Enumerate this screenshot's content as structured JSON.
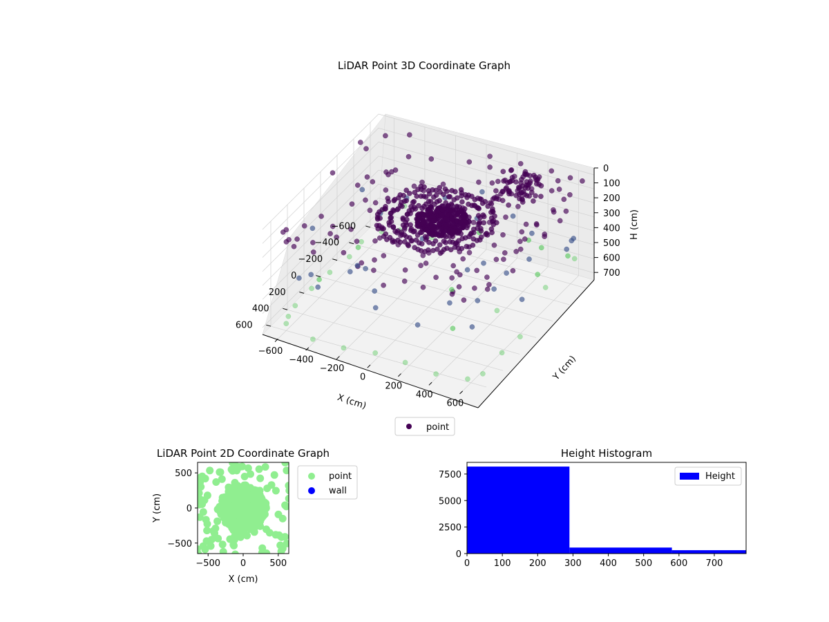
{
  "colors": {
    "point_3d_low": "#440154",
    "point_3d_mid": "#3b528b",
    "point_3d_high": "#5ec962",
    "point_2d": "#90ee90",
    "wall": "#0000ff",
    "hist_bar": "#0000ff",
    "pane_fill": "#f2f2f2",
    "grid": "#d0d0d0"
  },
  "chart_data": [
    {
      "type": "scatter",
      "projection": "3d",
      "title": "LiDAR Point 3D Coordinate Graph",
      "xlabel": "X (cm)",
      "ylabel": "Y (cm)",
      "zlabel": "H (cm)",
      "xlim": [
        -700,
        700
      ],
      "ylim": [
        -700,
        700
      ],
      "zlim": [
        750,
        0
      ],
      "xticks": [
        "−600",
        "−400",
        "−200",
        "0",
        "200",
        "400",
        "600"
      ],
      "yticks": [
        "−600",
        "−400",
        "−200",
        "0",
        "200",
        "400",
        "600"
      ],
      "zticks": [
        "0",
        "100",
        "200",
        "300",
        "400",
        "500",
        "600",
        "700"
      ],
      "legend": {
        "placement": "bottom-center",
        "entries": [
          "point"
        ]
      },
      "grid": true,
      "series": [
        {
          "name": "point",
          "structure": {
            "ring_center": [
              50,
              80
            ],
            "ring_radii_cm": [
              180,
              260,
              330
            ],
            "ring_height_cm": 50,
            "core_height_cm": 30,
            "upper_left_cluster_center": [
              -550,
              300
            ],
            "sample_points": [
              [
                -650,
                600,
                600
              ],
              [
                -600,
                620,
                420
              ],
              [
                -520,
                650,
                380
              ],
              [
                -480,
                640,
                420
              ],
              [
                -640,
                -500,
                560
              ],
              [
                -600,
                -620,
                600
              ],
              [
                -650,
                200,
                420
              ],
              [
                -600,
                -300,
                700
              ],
              [
                -550,
                -600,
                720
              ],
              [
                -400,
                -650,
                720
              ],
              [
                -200,
                -620,
                700
              ],
              [
                0,
                -640,
                700
              ],
              [
                200,
                -650,
                700
              ],
              [
                380,
                -660,
                720
              ],
              [
                500,
                -640,
                720
              ],
              [
                600,
                -600,
                700
              ],
              [
                650,
                -400,
                720
              ],
              [
                650,
                -200,
                720
              ],
              [
                640,
                0,
                700
              ],
              [
                650,
                200,
                700
              ],
              [
                650,
                400,
                720
              ],
              [
                640,
                600,
                700
              ],
              [
                550,
                650,
                700
              ],
              [
                300,
                640,
                700
              ],
              [
                100,
                650,
                700
              ],
              [
                -300,
                600,
                600
              ],
              [
                -200,
                400,
                500
              ],
              [
                300,
                300,
                450
              ],
              [
                400,
                500,
                500
              ],
              [
                500,
                200,
                520
              ],
              [
                200,
                -300,
                450
              ],
              [
                -300,
                -200,
                500
              ],
              [
                -100,
                200,
                480
              ],
              [
                450,
                -100,
                520
              ],
              [
                -400,
                -400,
                560
              ],
              [
                100,
                500,
                560
              ],
              [
                -650,
                650,
                30
              ],
              [
                -500,
                650,
                40
              ],
              [
                -300,
                650,
                30
              ],
              [
                -100,
                650,
                20
              ],
              [
                100,
                650,
                20
              ],
              [
                300,
                650,
                30
              ],
              [
                500,
                650,
                40
              ],
              [
                650,
                650,
                30
              ],
              [
                650,
                400,
                30
              ],
              [
                650,
                200,
                40
              ],
              [
                650,
                0,
                30
              ],
              [
                650,
                -200,
                40
              ],
              [
                650,
                -400,
                30
              ],
              [
                600,
                -600,
                30
              ],
              [
                -650,
                450,
                20
              ],
              [
                -650,
                250,
                30
              ],
              [
                -650,
                50,
                40
              ],
              [
                -400,
                600,
                120
              ],
              [
                0,
                600,
                150
              ],
              [
                400,
                600,
                200
              ],
              [
                620,
                300,
                150
              ],
              [
                620,
                -100,
                100
              ],
              [
                500,
                500,
                250
              ],
              [
                -250,
                620,
                200
              ]
            ]
          }
        }
      ]
    },
    {
      "type": "scatter",
      "title": "LiDAR Point 2D Coordinate Graph",
      "xlabel": "X (cm)",
      "ylabel": "Y (cm)",
      "xlim": [
        -650,
        650
      ],
      "ylim": [
        -650,
        650
      ],
      "xticks": [
        "−500",
        "0",
        "500"
      ],
      "yticks": [
        "500",
        "0",
        "−500"
      ],
      "legend": {
        "placement": "outside-right",
        "entries": [
          "point",
          "wall"
        ]
      },
      "series": [
        {
          "name": "point",
          "cluster_center": [
            0,
            0
          ],
          "cluster_radius_cm": 330
        },
        {
          "name": "wall",
          "count": 0
        }
      ]
    },
    {
      "type": "bar",
      "subtype": "histogram",
      "title": "Height Histogram",
      "xlim": [
        0,
        790
      ],
      "ylim": [
        0,
        8600
      ],
      "xticks": [
        "0",
        "100",
        "200",
        "300",
        "400",
        "500",
        "600",
        "700"
      ],
      "yticks": [
        "0",
        "2500",
        "5000",
        "7500"
      ],
      "legend": {
        "placement": "top-right",
        "entries": [
          "Height"
        ]
      },
      "series": [
        {
          "name": "Height",
          "bins": [
            {
              "start": 0,
              "end": 290,
              "count": 8200
            },
            {
              "start": 290,
              "end": 580,
              "count": 570
            },
            {
              "start": 580,
              "end": 790,
              "count": 320
            }
          ]
        }
      ]
    }
  ]
}
